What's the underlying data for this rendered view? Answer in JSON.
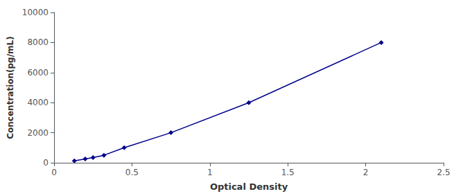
{
  "chart_data": {
    "type": "line",
    "x": [
      0.13,
      0.2,
      0.25,
      0.32,
      0.45,
      0.75,
      1.25,
      2.1
    ],
    "values": [
      125,
      250,
      350,
      500,
      1000,
      2000,
      4000,
      8000
    ],
    "color": "#00008B",
    "marker": "diamond",
    "line_style": "solid",
    "xlabel": "Optical Density",
    "ylabel": "Concentration(pg/mL)",
    "xlim": [
      0,
      2.5
    ],
    "ylim": [
      0,
      10000
    ],
    "xticks": [
      0,
      0.5,
      1,
      1.5,
      2,
      2.5
    ],
    "yticks": [
      0,
      2000,
      4000,
      6000,
      8000,
      10000
    ],
    "grid": false
  }
}
